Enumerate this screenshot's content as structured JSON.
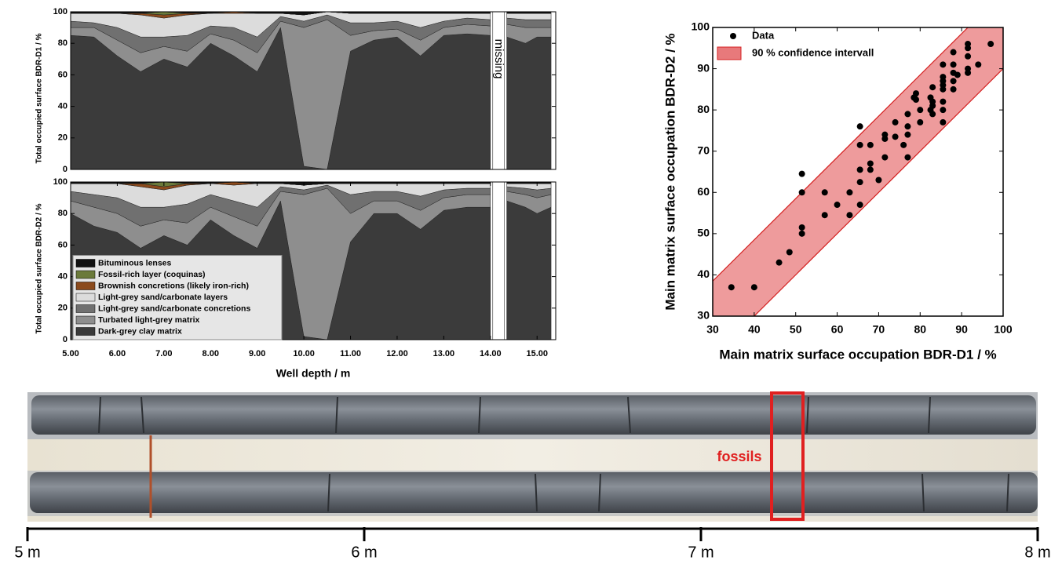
{
  "chart_data": [
    {
      "type": "stacked-area",
      "ylabel": "Total occupied surface BDR-D1 / %",
      "annotation": "missing",
      "x": [
        5.0,
        5.5,
        6.0,
        6.5,
        7.0,
        7.5,
        8.0,
        8.5,
        9.0,
        9.5,
        10.0,
        10.5,
        11.0,
        11.5,
        12.0,
        12.5,
        13.0,
        13.5,
        14.0,
        14.2,
        14.35,
        14.75,
        15.0,
        15.3
      ],
      "xlim": [
        5.0,
        15.4
      ],
      "ylim": [
        0,
        100
      ],
      "yticks": [
        0,
        20,
        40,
        60,
        80,
        100
      ],
      "series": [
        {
          "color": "#111111",
          "values": [
            1,
            1,
            1,
            1,
            0,
            1,
            1,
            0,
            1,
            1,
            2,
            0,
            1,
            1,
            1,
            1,
            1,
            1,
            1,
            null,
            1,
            1,
            1,
            1
          ]
        },
        {
          "color": "#6b7a3a",
          "values": [
            0,
            0,
            0,
            0,
            2,
            0,
            0,
            0,
            0,
            0,
            0,
            0,
            0,
            0,
            0,
            0,
            0,
            0,
            0,
            null,
            0,
            0,
            0,
            0
          ]
        },
        {
          "color": "#8b4a1c",
          "values": [
            0,
            0,
            0,
            1,
            2,
            1,
            0,
            1,
            0,
            0,
            0,
            0,
            0,
            0,
            0,
            0,
            0,
            0,
            0,
            null,
            0,
            0,
            0,
            0
          ]
        },
        {
          "color": "#dcdcdc",
          "values": [
            5,
            6,
            9,
            14,
            12,
            13,
            8,
            9,
            15,
            2,
            4,
            2,
            6,
            6,
            5,
            9,
            5,
            3,
            4,
            null,
            3,
            4,
            4,
            4
          ]
        },
        {
          "color": "#707070",
          "values": [
            4,
            3,
            8,
            10,
            6,
            10,
            5,
            8,
            10,
            3,
            4,
            3,
            8,
            5,
            5,
            8,
            4,
            4,
            4,
            null,
            4,
            5,
            5,
            5
          ]
        },
        {
          "color": "#8e8e8e",
          "values": [
            5,
            6,
            10,
            12,
            8,
            10,
            6,
            10,
            12,
            4,
            88,
            95,
            10,
            6,
            5,
            10,
            5,
            6,
            6,
            null,
            8,
            10,
            6,
            6
          ]
        },
        {
          "color": "#3b3b3b",
          "values": [
            85,
            84,
            72,
            62,
            70,
            65,
            80,
            72,
            62,
            90,
            2,
            0,
            75,
            82,
            84,
            72,
            85,
            86,
            85,
            null,
            84,
            80,
            84,
            84
          ]
        }
      ]
    },
    {
      "type": "stacked-area",
      "ylabel": "Total occupied surface BDR-D2 / %",
      "xlabel": "Well depth / m",
      "x": [
        5.0,
        5.5,
        6.0,
        6.5,
        7.0,
        7.5,
        8.0,
        8.5,
        9.0,
        9.5,
        10.0,
        10.5,
        11.0,
        11.5,
        12.0,
        12.5,
        13.0,
        13.5,
        14.0,
        14.2,
        14.35,
        14.75,
        15.0,
        15.3
      ],
      "xlim": [
        5.0,
        15.4
      ],
      "ylim": [
        0,
        100
      ],
      "yticks": [
        0,
        20,
        40,
        60,
        80,
        100
      ],
      "xticks": [
        {
          "value": 5,
          "label": "5.00"
        },
        {
          "value": 6,
          "label": "6.00"
        },
        {
          "value": 7,
          "label": "7.00"
        },
        {
          "value": 8,
          "label": "8.00"
        },
        {
          "value": 9,
          "label": "9.00"
        },
        {
          "value": 10,
          "label": "10.00"
        },
        {
          "value": 11,
          "label": "11.00"
        },
        {
          "value": 12,
          "label": "12.00"
        },
        {
          "value": 13,
          "label": "13.00"
        },
        {
          "value": 14,
          "label": "14.00"
        },
        {
          "value": 15,
          "label": "15.00"
        }
      ],
      "legend": "lower left",
      "series": [
        {
          "name": "Bituminous lenses",
          "color": "#111111",
          "values": [
            1,
            1,
            1,
            1,
            0,
            1,
            1,
            0,
            1,
            1,
            2,
            1,
            1,
            1,
            1,
            1,
            1,
            1,
            1,
            null,
            1,
            1,
            1,
            1
          ]
        },
        {
          "name": "Fossil-rich layer (coquinas)",
          "color": "#6b7a3a",
          "values": [
            0,
            0,
            0,
            0,
            3,
            0,
            0,
            0,
            0,
            0,
            0,
            0,
            0,
            0,
            0,
            0,
            0,
            0,
            0,
            null,
            0,
            0,
            0,
            0
          ]
        },
        {
          "name": "Brownish concretions (likely iron-rich)",
          "color": "#8b4a1c",
          "values": [
            0,
            0,
            0,
            2,
            2,
            1,
            0,
            2,
            0,
            0,
            0,
            0,
            0,
            0,
            0,
            0,
            0,
            0,
            0,
            null,
            0,
            0,
            0,
            0
          ]
        },
        {
          "name": "Light-grey sand/carbonate layers",
          "color": "#dcdcdc",
          "values": [
            5,
            7,
            9,
            13,
            11,
            12,
            7,
            10,
            15,
            2,
            3,
            1,
            7,
            5,
            5,
            8,
            4,
            3,
            3,
            null,
            2,
            3,
            4,
            3
          ]
        },
        {
          "name": "Light-grey sand/carbonate concretions",
          "color": "#707070",
          "values": [
            6,
            8,
            10,
            12,
            8,
            12,
            8,
            10,
            12,
            3,
            3,
            2,
            12,
            6,
            6,
            9,
            5,
            4,
            4,
            null,
            3,
            4,
            5,
            4
          ]
        },
        {
          "name": "Turbated light-grey matrix",
          "color": "#8e8e8e",
          "values": [
            8,
            12,
            12,
            14,
            10,
            14,
            8,
            12,
            14,
            6,
            90,
            96,
            18,
            8,
            8,
            12,
            8,
            8,
            8,
            null,
            6,
            8,
            10,
            8
          ]
        },
        {
          "name": "Dark-grey clay matrix",
          "color": "#3b3b3b",
          "values": [
            80,
            72,
            68,
            58,
            66,
            60,
            76,
            66,
            58,
            88,
            2,
            0,
            62,
            80,
            80,
            70,
            82,
            84,
            84,
            null,
            88,
            84,
            80,
            84
          ]
        }
      ]
    },
    {
      "type": "scatter",
      "xlabel": "Main matrix surface occupation BDR-D1 / %",
      "ylabel": "Main matrix surface occupation BDR-D2 / %",
      "xlim": [
        30,
        100
      ],
      "ylim": [
        30,
        100
      ],
      "xticks": [
        30,
        40,
        50,
        60,
        70,
        80,
        90,
        100
      ],
      "yticks": [
        30,
        40,
        50,
        60,
        70,
        80,
        90,
        100
      ],
      "legend": "upper left",
      "band": {
        "name": "90 % confidence intervall",
        "color": "#e8797b",
        "x": [
          30,
          100
        ],
        "lower": [
          20,
          90
        ],
        "upper": [
          38.5,
          108.5
        ]
      },
      "series": [
        {
          "name": "Data",
          "color": "#000000",
          "x": [
            34.5,
            40,
            46,
            48.5,
            51.5,
            51.5,
            51.5,
            51.5,
            57,
            57,
            60,
            63,
            63,
            65.5,
            65.5,
            65.5,
            65.5,
            65.5,
            68,
            68,
            68,
            70,
            71.5,
            71.5,
            71.5,
            74,
            74,
            76,
            77,
            77,
            77,
            77,
            78.5,
            79,
            79,
            80,
            80,
            82.5,
            82.5,
            83,
            83,
            83,
            83,
            85.5,
            85.5,
            85.5,
            85.5,
            85.5,
            85.5,
            85.5,
            85.5,
            88,
            88,
            88,
            88,
            88,
            89,
            91.5,
            91.5,
            91.5,
            91.5,
            91.5,
            94,
            97
          ],
          "values": [
            37,
            37,
            43,
            45.5,
            64.5,
            60,
            51.5,
            50,
            60,
            54.5,
            57,
            60,
            54.5,
            76,
            71.5,
            65.5,
            62.5,
            57,
            71.5,
            67,
            65.5,
            63,
            74,
            73,
            68.5,
            77,
            73.5,
            71.5,
            79,
            76,
            74,
            68.5,
            83,
            84,
            82.5,
            80,
            77,
            83,
            80,
            85.5,
            82,
            81,
            79,
            91,
            88,
            87,
            86,
            85,
            82,
            80,
            77,
            94,
            91,
            89,
            87,
            85,
            88.5,
            96,
            95,
            93,
            90,
            89,
            91,
            96
          ]
        }
      ]
    }
  ],
  "core_photo": {
    "annotation": "fossils",
    "scale_ticks": [
      {
        "value": 5,
        "label": "5 m"
      },
      {
        "value": 6,
        "label": "6 m"
      },
      {
        "value": 7,
        "label": "7 m"
      },
      {
        "value": 8,
        "label": "8 m"
      }
    ]
  }
}
